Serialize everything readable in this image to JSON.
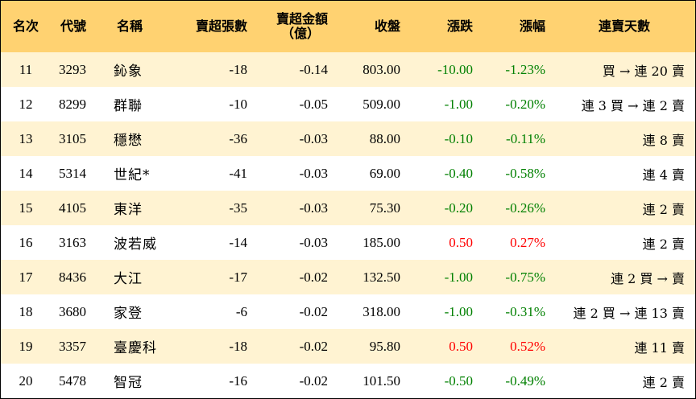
{
  "headers": {
    "rank": "名次",
    "code": "代號",
    "name": "名稱",
    "net_sell_lots": "賣超張數",
    "net_sell_amount_line1": "賣超金額",
    "net_sell_amount_line2": "（億）",
    "close": "收盤",
    "change": "漲跌",
    "change_pct": "漲幅",
    "streak": "連賣天數"
  },
  "colors": {
    "header_bg": "#FFD271",
    "odd_row_bg": "#FFF3D2",
    "even_row_bg": "#FFFFFF",
    "up": "#FF0000",
    "down": "#008000"
  },
  "rows": [
    {
      "rank": "11",
      "code": "3293",
      "name": "鈊象",
      "lots": "-18",
      "amount": "-0.14",
      "close": "803.00",
      "change": "-10.00",
      "pct": "-1.23%",
      "dir": "down",
      "streak": "買 → 連 20 賣"
    },
    {
      "rank": "12",
      "code": "8299",
      "name": "群聯",
      "lots": "-10",
      "amount": "-0.05",
      "close": "509.00",
      "change": "-1.00",
      "pct": "-0.20%",
      "dir": "down",
      "streak": "連 3 買 → 連 2 賣"
    },
    {
      "rank": "13",
      "code": "3105",
      "name": "穩懋",
      "lots": "-36",
      "amount": "-0.03",
      "close": "88.00",
      "change": "-0.10",
      "pct": "-0.11%",
      "dir": "down",
      "streak": "連 8 賣"
    },
    {
      "rank": "14",
      "code": "5314",
      "name": "世紀*",
      "lots": "-41",
      "amount": "-0.03",
      "close": "69.00",
      "change": "-0.40",
      "pct": "-0.58%",
      "dir": "down",
      "streak": "連 4 賣"
    },
    {
      "rank": "15",
      "code": "4105",
      "name": "東洋",
      "lots": "-35",
      "amount": "-0.03",
      "close": "75.30",
      "change": "-0.20",
      "pct": "-0.26%",
      "dir": "down",
      "streak": "連 2 賣"
    },
    {
      "rank": "16",
      "code": "3163",
      "name": "波若威",
      "lots": "-14",
      "amount": "-0.03",
      "close": "185.00",
      "change": "0.50",
      "pct": "0.27%",
      "dir": "up",
      "streak": "連 2 賣"
    },
    {
      "rank": "17",
      "code": "8436",
      "name": "大江",
      "lots": "-17",
      "amount": "-0.02",
      "close": "132.50",
      "change": "-1.00",
      "pct": "-0.75%",
      "dir": "down",
      "streak": "連 2 買 → 賣"
    },
    {
      "rank": "18",
      "code": "3680",
      "name": "家登",
      "lots": "-6",
      "amount": "-0.02",
      "close": "318.00",
      "change": "-1.00",
      "pct": "-0.31%",
      "dir": "down",
      "streak": "連 2 買 → 連 13 賣"
    },
    {
      "rank": "19",
      "code": "3357",
      "name": "臺慶科",
      "lots": "-18",
      "amount": "-0.02",
      "close": "95.80",
      "change": "0.50",
      "pct": "0.52%",
      "dir": "up",
      "streak": "連 11 賣"
    },
    {
      "rank": "20",
      "code": "5478",
      "name": "智冠",
      "lots": "-16",
      "amount": "-0.02",
      "close": "101.50",
      "change": "-0.50",
      "pct": "-0.49%",
      "dir": "down",
      "streak": "連 2 賣"
    }
  ]
}
